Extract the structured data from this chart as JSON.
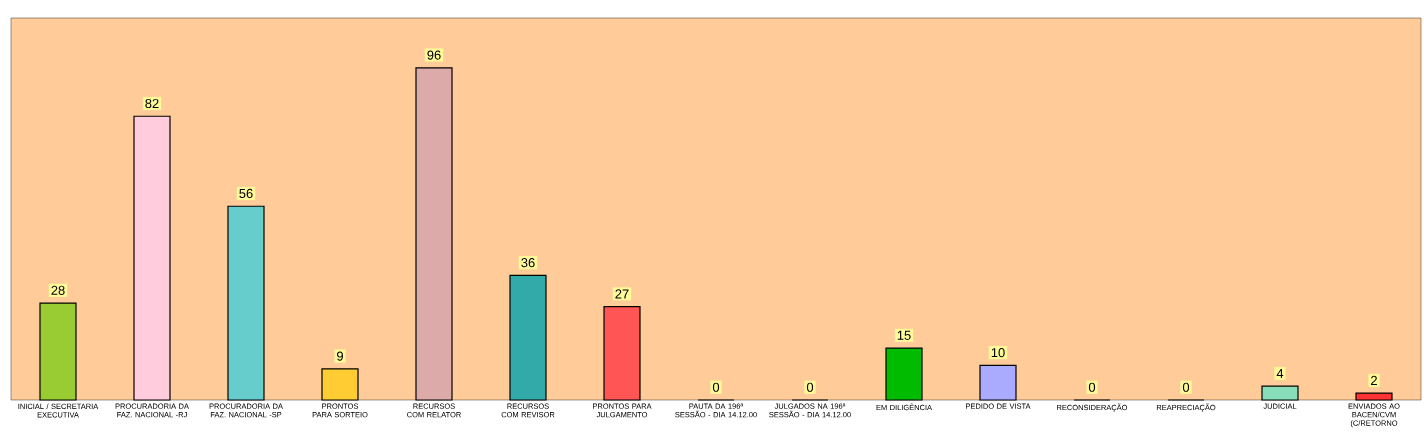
{
  "chart_data": {
    "type": "bar",
    "categories": [
      "INICIAL / SECRETARIA EXECUTIVA",
      "PROCURADORIA DA FAZ. NACIONAL -RJ",
      "PROCURADORIA DA FAZ. NACIONAL -SP",
      "PRONTOS PARA SORTEIO",
      "RECURSOS COM RELATOR",
      "RECURSOS COM REVISOR",
      "PRONTOS PARA JULGAMENTO",
      "PAUTA DA 196ª SESSÃO - DIA 14.12.00",
      "JULGADOS NA 196ª SESSÃO - DIA 14.12.00",
      "EM DILIGÊNCIA",
      "PEDIDO DE VISTA",
      "RECONSIDERAÇÃO",
      "REAPRECIAÇÃO",
      "JUDICIAL",
      "ENVIADOS AO BACEN/CVM (C/RETORNO"
    ],
    "values": [
      28,
      82,
      56,
      9,
      96,
      36,
      27,
      0,
      0,
      15,
      10,
      0,
      0,
      4,
      2
    ],
    "colors": [
      "#99cc33",
      "#ffccdd",
      "#66cccc",
      "#ffcc33",
      "#ddaaaa",
      "#33aaaa",
      "#ff5555",
      "#cccccc",
      "#cccccc",
      "#00bb00",
      "#aaaaff",
      "#cccccc",
      "#cccccc",
      "#88ddbb",
      "#ff3333"
    ],
    "data_labels": true
  }
}
